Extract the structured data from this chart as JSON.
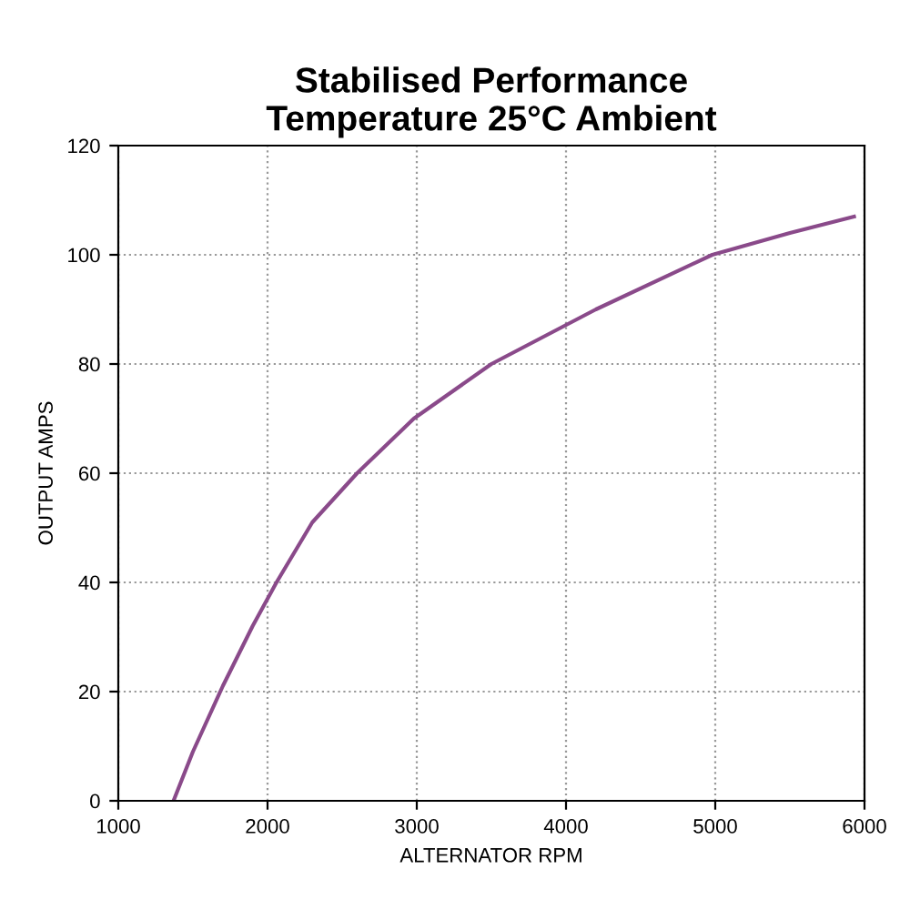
{
  "chart_data": {
    "type": "line",
    "title": "Stabilised Performance\nTemperature 25°C Ambient",
    "xlabel": "ALTERNATOR RPM",
    "ylabel": "OUTPUT AMPS",
    "x": [
      1370,
      1500,
      1700,
      1900,
      2060,
      2300,
      2600,
      2980,
      3500,
      4200,
      4980,
      5500,
      5930
    ],
    "series": [
      {
        "color": "#8a4a8a",
        "values": [
          0,
          9,
          21,
          32,
          40,
          51,
          60,
          70,
          80,
          90,
          100,
          104,
          107
        ]
      }
    ],
    "xlim": [
      1000,
      6000
    ],
    "xticks": [
      1000,
      2000,
      3000,
      4000,
      5000,
      6000
    ],
    "ylim": [
      0,
      120
    ],
    "yticks": [
      0,
      20,
      40,
      60,
      80,
      100,
      120
    ],
    "grid": true,
    "marker": "none",
    "line_style": "solid"
  }
}
